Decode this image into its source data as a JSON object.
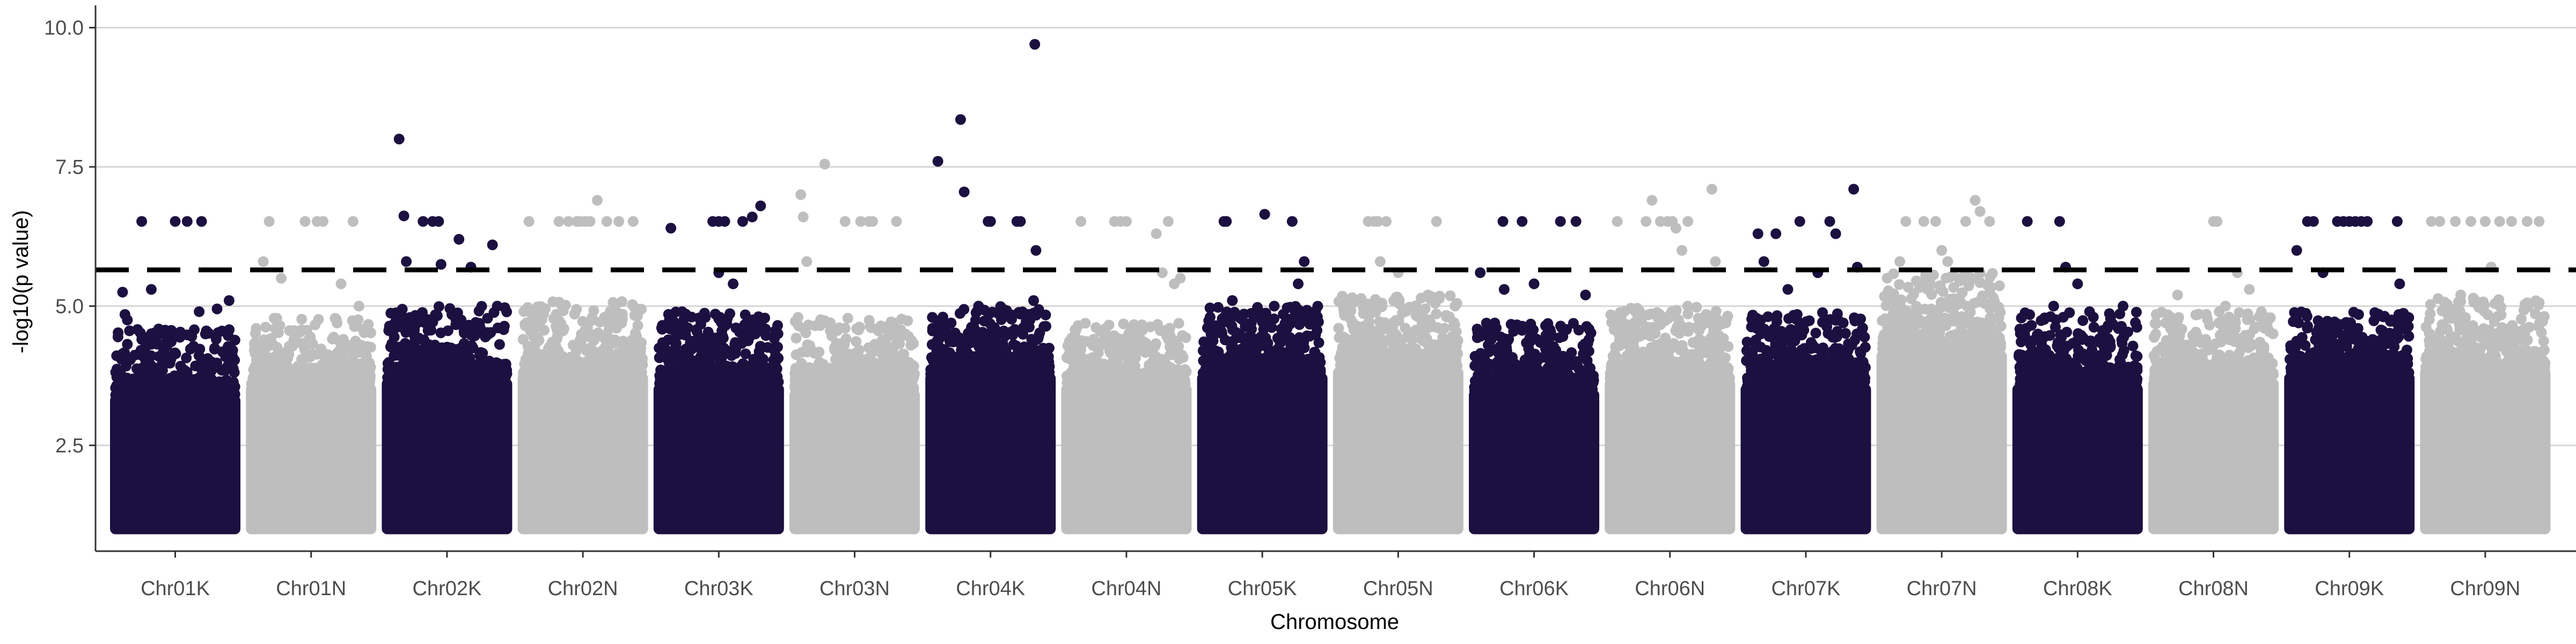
{
  "chart_data": {
    "type": "scatter",
    "subtype": "manhattan",
    "title": "",
    "xlabel": "Chromosome",
    "ylabel": "-log10(p value)",
    "ylim": [
      0.6,
      10.4
    ],
    "y_ticks": [
      2.5,
      5.0,
      7.5,
      10.0
    ],
    "y_tick_labels": [
      "2.5",
      "5.0",
      "7.5",
      "10.0"
    ],
    "grid": "horizontal major only",
    "legend": "none",
    "threshold": {
      "value": 5.65,
      "style": "dashed",
      "color": "#000000"
    },
    "series_colors": {
      "K": "#1b1040",
      "N": "#bebebe"
    },
    "baseline_min": 1.0,
    "categories": [
      "Chr01K",
      "Chr01N",
      "Chr02K",
      "Chr02N",
      "Chr03K",
      "Chr03N",
      "Chr04K",
      "Chr04N",
      "Chr05K",
      "Chr05N",
      "Chr06K",
      "Chr06N",
      "Chr07K",
      "Chr07N",
      "Chr08K",
      "Chr08N",
      "Chr09K",
      "Chr09N"
    ],
    "chromosomes": [
      {
        "name": "Chr01K",
        "color": "#1b1040",
        "band_top": 3.4,
        "cloud_top": 4.2,
        "peaks": [
          [
            0.06,
            5.25
          ],
          [
            0.08,
            4.85
          ],
          [
            0.1,
            4.75
          ],
          [
            0.22,
            6.52
          ],
          [
            0.3,
            5.3
          ],
          [
            0.5,
            6.52
          ],
          [
            0.6,
            6.52
          ],
          [
            0.7,
            4.9
          ],
          [
            0.72,
            6.52
          ],
          [
            0.85,
            4.95
          ],
          [
            0.95,
            5.1
          ]
        ]
      },
      {
        "name": "Chr01N",
        "color": "#bebebe",
        "band_top": 3.6,
        "cloud_top": 4.4,
        "peaks": [
          [
            0.1,
            5.8
          ],
          [
            0.15,
            6.52
          ],
          [
            0.25,
            5.5
          ],
          [
            0.45,
            6.52
          ],
          [
            0.55,
            6.52
          ],
          [
            0.6,
            6.52
          ],
          [
            0.75,
            5.4
          ],
          [
            0.85,
            6.52
          ],
          [
            0.9,
            5.0
          ]
        ]
      },
      {
        "name": "Chr02K",
        "color": "#1b1040",
        "band_top": 3.7,
        "cloud_top": 4.6,
        "peaks": [
          [
            0.1,
            8.0
          ],
          [
            0.14,
            6.62
          ],
          [
            0.16,
            5.8
          ],
          [
            0.3,
            6.52
          ],
          [
            0.38,
            6.52
          ],
          [
            0.43,
            6.52
          ],
          [
            0.45,
            5.75
          ],
          [
            0.6,
            6.2
          ],
          [
            0.7,
            5.7
          ],
          [
            0.88,
            6.1
          ],
          [
            0.92,
            5.0
          ]
        ]
      },
      {
        "name": "Chr02N",
        "color": "#bebebe",
        "band_top": 3.8,
        "cloud_top": 4.7,
        "peaks": [
          [
            0.05,
            6.52
          ],
          [
            0.3,
            6.52
          ],
          [
            0.38,
            6.52
          ],
          [
            0.45,
            6.52
          ],
          [
            0.48,
            6.52
          ],
          [
            0.52,
            6.52
          ],
          [
            0.56,
            6.52
          ],
          [
            0.62,
            6.9
          ],
          [
            0.7,
            6.52
          ],
          [
            0.8,
            6.52
          ],
          [
            0.92,
            6.52
          ]
        ]
      },
      {
        "name": "Chr03K",
        "color": "#1b1040",
        "band_top": 3.6,
        "cloud_top": 4.5,
        "peaks": [
          [
            0.1,
            6.4
          ],
          [
            0.45,
            6.52
          ],
          [
            0.5,
            6.52
          ],
          [
            0.55,
            6.52
          ],
          [
            0.7,
            6.52
          ],
          [
            0.78,
            6.6
          ],
          [
            0.85,
            6.8
          ],
          [
            0.5,
            5.6
          ],
          [
            0.62,
            5.4
          ]
        ]
      },
      {
        "name": "Chr03N",
        "color": "#bebebe",
        "band_top": 3.5,
        "cloud_top": 4.4,
        "peaks": [
          [
            0.05,
            7.0
          ],
          [
            0.07,
            6.6
          ],
          [
            0.1,
            5.8
          ],
          [
            0.25,
            7.55
          ],
          [
            0.42,
            6.52
          ],
          [
            0.55,
            6.52
          ],
          [
            0.62,
            6.52
          ],
          [
            0.65,
            6.52
          ],
          [
            0.85,
            6.52
          ]
        ]
      },
      {
        "name": "Chr04K",
        "color": "#1b1040",
        "band_top": 3.8,
        "cloud_top": 4.6,
        "peaks": [
          [
            0.06,
            7.6
          ],
          [
            0.25,
            8.35
          ],
          [
            0.28,
            7.05
          ],
          [
            0.48,
            6.52
          ],
          [
            0.5,
            6.52
          ],
          [
            0.72,
            6.52
          ],
          [
            0.75,
            6.52
          ],
          [
            0.87,
            9.7
          ],
          [
            0.88,
            6.0
          ],
          [
            0.86,
            5.1
          ],
          [
            0.4,
            5.0
          ]
        ]
      },
      {
        "name": "Chr04N",
        "color": "#bebebe",
        "band_top": 3.6,
        "cloud_top": 4.3,
        "peaks": [
          [
            0.12,
            6.52
          ],
          [
            0.4,
            6.52
          ],
          [
            0.45,
            6.52
          ],
          [
            0.5,
            6.52
          ],
          [
            0.75,
            6.3
          ],
          [
            0.8,
            5.6
          ],
          [
            0.85,
            6.52
          ],
          [
            0.9,
            5.4
          ],
          [
            0.95,
            5.5
          ]
        ]
      },
      {
        "name": "Chr05K",
        "color": "#1b1040",
        "band_top": 3.8,
        "cloud_top": 4.6,
        "peaks": [
          [
            0.18,
            6.52
          ],
          [
            0.2,
            6.52
          ],
          [
            0.52,
            6.65
          ],
          [
            0.75,
            6.52
          ],
          [
            0.8,
            5.4
          ],
          [
            0.85,
            5.8
          ],
          [
            0.25,
            5.1
          ],
          [
            0.6,
            5.0
          ]
        ]
      },
      {
        "name": "Chr05N",
        "color": "#bebebe",
        "band_top": 3.9,
        "cloud_top": 4.8,
        "peaks": [
          [
            0.25,
            6.52
          ],
          [
            0.3,
            6.52
          ],
          [
            0.33,
            6.52
          ],
          [
            0.4,
            6.52
          ],
          [
            0.35,
            5.8
          ],
          [
            0.5,
            5.6
          ],
          [
            0.82,
            6.52
          ],
          [
            0.75,
            5.2
          ]
        ]
      },
      {
        "name": "Chr06K",
        "color": "#1b1040",
        "band_top": 3.5,
        "cloud_top": 4.3,
        "peaks": [
          [
            0.05,
            5.6
          ],
          [
            0.25,
            5.3
          ],
          [
            0.24,
            6.52
          ],
          [
            0.4,
            6.52
          ],
          [
            0.5,
            5.4
          ],
          [
            0.72,
            6.52
          ],
          [
            0.85,
            6.52
          ],
          [
            0.93,
            5.2
          ]
        ]
      },
      {
        "name": "Chr06N",
        "color": "#bebebe",
        "band_top": 3.7,
        "cloud_top": 4.6,
        "peaks": [
          [
            0.06,
            6.52
          ],
          [
            0.3,
            6.52
          ],
          [
            0.35,
            6.9
          ],
          [
            0.42,
            6.52
          ],
          [
            0.48,
            6.52
          ],
          [
            0.52,
            6.52
          ],
          [
            0.55,
            6.4
          ],
          [
            0.6,
            6.0
          ],
          [
            0.65,
            6.52
          ],
          [
            0.85,
            7.1
          ],
          [
            0.88,
            5.8
          ]
        ]
      },
      {
        "name": "Chr07K",
        "color": "#1b1040",
        "band_top": 3.6,
        "cloud_top": 4.5,
        "peaks": [
          [
            0.1,
            6.3
          ],
          [
            0.15,
            5.8
          ],
          [
            0.25,
            6.3
          ],
          [
            0.35,
            5.3
          ],
          [
            0.45,
            6.52
          ],
          [
            0.6,
            5.6
          ],
          [
            0.7,
            6.52
          ],
          [
            0.75,
            6.3
          ],
          [
            0.9,
            7.1
          ],
          [
            0.93,
            5.7
          ]
        ]
      },
      {
        "name": "Chr07N",
        "color": "#bebebe",
        "band_top": 4.2,
        "cloud_top": 5.2,
        "peaks": [
          [
            0.15,
            5.8
          ],
          [
            0.2,
            6.52
          ],
          [
            0.35,
            6.52
          ],
          [
            0.45,
            6.52
          ],
          [
            0.5,
            6.0
          ],
          [
            0.55,
            5.8
          ],
          [
            0.7,
            6.52
          ],
          [
            0.78,
            6.9
          ],
          [
            0.82,
            6.7
          ],
          [
            0.9,
            6.52
          ]
        ]
      },
      {
        "name": "Chr08K",
        "color": "#1b1040",
        "band_top": 3.6,
        "cloud_top": 4.5,
        "peaks": [
          [
            0.08,
            6.52
          ],
          [
            0.35,
            6.52
          ],
          [
            0.4,
            5.7
          ],
          [
            0.5,
            5.4
          ],
          [
            0.6,
            4.9
          ],
          [
            0.75,
            4.6
          ],
          [
            0.88,
            5.0
          ],
          [
            0.3,
            5.0
          ]
        ]
      },
      {
        "name": "Chr08N",
        "color": "#bebebe",
        "band_top": 3.7,
        "cloud_top": 4.5,
        "peaks": [
          [
            0.2,
            5.2
          ],
          [
            0.5,
            6.52
          ],
          [
            0.53,
            6.52
          ],
          [
            0.6,
            5.0
          ],
          [
            0.7,
            5.6
          ],
          [
            0.8,
            5.3
          ],
          [
            0.9,
            4.9
          ]
        ]
      },
      {
        "name": "Chr09K",
        "color": "#1b1040",
        "band_top": 3.8,
        "cloud_top": 4.5,
        "peaks": [
          [
            0.06,
            6.0
          ],
          [
            0.15,
            6.52
          ],
          [
            0.2,
            6.52
          ],
          [
            0.28,
            5.6
          ],
          [
            0.4,
            6.52
          ],
          [
            0.45,
            6.52
          ],
          [
            0.5,
            6.52
          ],
          [
            0.55,
            6.52
          ],
          [
            0.6,
            6.52
          ],
          [
            0.65,
            6.52
          ],
          [
            0.9,
            6.52
          ],
          [
            0.92,
            5.4
          ]
        ]
      },
      {
        "name": "Chr09N",
        "color": "#bebebe",
        "band_top": 3.9,
        "cloud_top": 4.8,
        "peaks": [
          [
            0.05,
            6.52
          ],
          [
            0.12,
            6.52
          ],
          [
            0.25,
            6.52
          ],
          [
            0.38,
            6.52
          ],
          [
            0.5,
            6.52
          ],
          [
            0.55,
            5.7
          ],
          [
            0.62,
            6.52
          ],
          [
            0.72,
            6.52
          ],
          [
            0.85,
            6.52
          ],
          [
            0.95,
            6.52
          ]
        ]
      }
    ]
  }
}
